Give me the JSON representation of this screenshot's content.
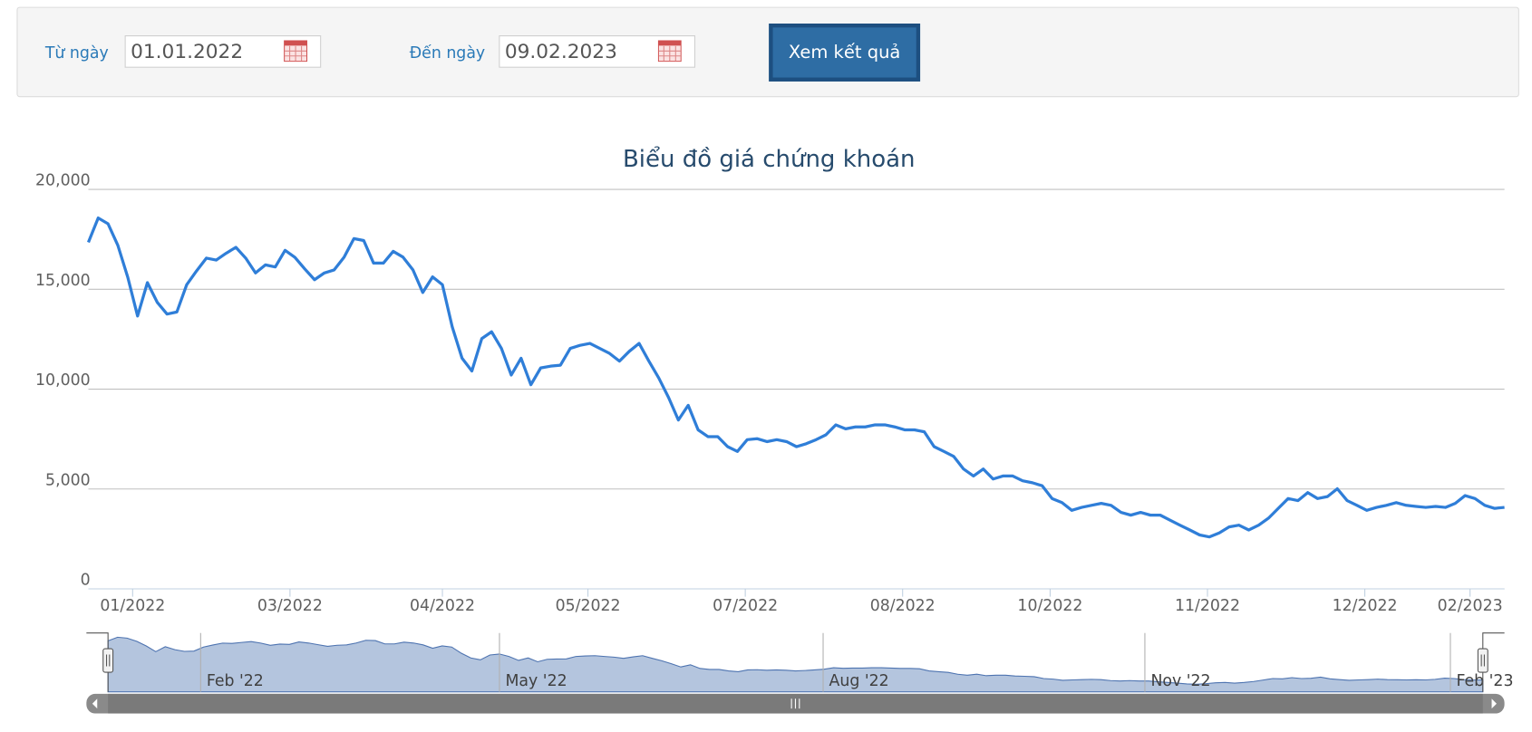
{
  "form": {
    "from_label": "Từ ngày",
    "from_value": "01.01.2022",
    "to_label": "Đến ngày",
    "to_value": "09.02.2023",
    "button": "Xem kết quả"
  },
  "chart_data": {
    "type": "line",
    "title": "Biểu đồ giá chứng khoán",
    "series": [
      {
        "color": "#2f7ed8",
        "values": [
          17350,
          18570,
          18280,
          17200,
          15600,
          13660,
          15330,
          14350,
          13760,
          13860,
          15230,
          15920,
          16560,
          16460,
          16800,
          17100,
          16560,
          15820,
          16220,
          16120,
          16950,
          16600,
          16020,
          15480,
          15820,
          15970,
          16610,
          17540,
          17440,
          16310,
          16310,
          16900,
          16610,
          15970,
          14840,
          15620,
          15230,
          13120,
          11550,
          10910,
          12530,
          12870,
          12040,
          10710,
          11550,
          10220,
          11060,
          11150,
          11200,
          12040,
          12190,
          12290,
          12040,
          11790,
          11400,
          11890,
          12290,
          11400,
          10560,
          9580,
          8450,
          9190,
          7960,
          7620,
          7620,
          7120,
          6880,
          7470,
          7520,
          7370,
          7470,
          7370,
          7120,
          7270,
          7470,
          7710,
          8210,
          8010,
          8110,
          8110,
          8210,
          8210,
          8110,
          7960,
          7960,
          7860,
          7120,
          6880,
          6630,
          6000,
          5650,
          6000,
          5500,
          5650,
          5650,
          5410,
          5310,
          5160,
          4520,
          4320,
          3930,
          4080,
          4180,
          4280,
          4180,
          3830,
          3690,
          3830,
          3690,
          3690,
          3440,
          3190,
          2950,
          2700,
          2600,
          2800,
          3100,
          3190,
          2950,
          3190,
          3540,
          4030,
          4520,
          4420,
          4820,
          4520,
          4620,
          5010,
          4420,
          4180,
          3930,
          4080,
          4180,
          4320,
          4180,
          4130,
          4080,
          4130,
          4080,
          4280,
          4670,
          4520,
          4180,
          4030,
          4080
        ]
      }
    ],
    "xlim": [
      0,
      144
    ],
    "xticks": [
      {
        "value": 4.5,
        "label": "01/2022"
      },
      {
        "value": 20.5,
        "label": "03/2022"
      },
      {
        "value": 36,
        "label": "04/2022"
      },
      {
        "value": 50.8,
        "label": "05/2022"
      },
      {
        "value": 66.8,
        "label": "07/2022"
      },
      {
        "value": 82.8,
        "label": "08/2022"
      },
      {
        "value": 97.8,
        "label": "10/2022"
      },
      {
        "value": 113.8,
        "label": "11/2022"
      },
      {
        "value": 129.8,
        "label": "12/2022"
      },
      {
        "value": 140.5,
        "label": "02/2023"
      }
    ],
    "ylim": [
      0,
      20000
    ],
    "yticks": [
      0,
      {
        "value": 5000,
        "label": "5,000"
      },
      {
        "value": 10000,
        "label": "10,000"
      },
      {
        "value": 15000,
        "label": "15,000"
      },
      {
        "value": 20000,
        "label": "20,000"
      }
    ],
    "grid": true,
    "navigator_ticks": [
      {
        "value": 9.7,
        "label": "Feb '22"
      },
      {
        "value": 41,
        "label": "May '22"
      },
      {
        "value": 74.9,
        "label": "Aug '22"
      },
      {
        "value": 108.6,
        "label": "Nov '22"
      },
      {
        "value": 140.6,
        "label": "Feb '23"
      }
    ]
  }
}
